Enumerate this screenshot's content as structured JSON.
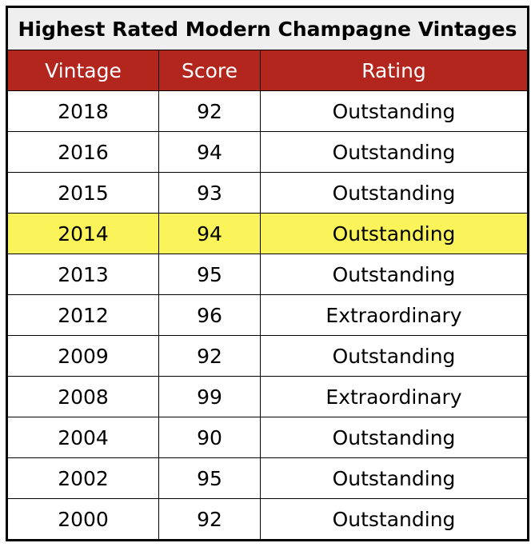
{
  "table": {
    "title": "Highest Rated Modern Champagne Vintages",
    "columns": [
      "Vintage",
      "Score",
      "Rating"
    ],
    "rows": [
      [
        2018,
        92,
        "Outstanding"
      ],
      [
        2016,
        94,
        "Outstanding"
      ],
      [
        2015,
        93,
        "Outstanding"
      ],
      [
        2014,
        94,
        "Outstanding"
      ],
      [
        2013,
        95,
        "Outstanding"
      ],
      [
        2012,
        96,
        "Extraordinary"
      ],
      [
        2009,
        92,
        "Outstanding"
      ],
      [
        2008,
        99,
        "Extraordinary"
      ],
      [
        2004,
        90,
        "Outstanding"
      ],
      [
        2002,
        95,
        "Outstanding"
      ],
      [
        2000,
        92,
        "Outstanding"
      ]
    ],
    "highlighted_row": 3,
    "header_color": "#b3261e",
    "highlight_color": "#fbf35a"
  }
}
